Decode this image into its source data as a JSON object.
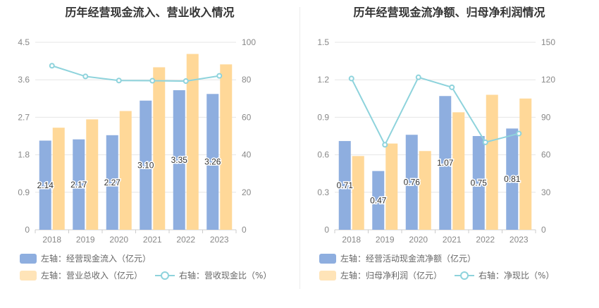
{
  "charts": {
    "left": {
      "title": "历年经营现金流入、营业收入情况",
      "legend": {
        "bar1": "左轴：经营现金流入（亿元）",
        "bar2": "左轴：营业总收入（亿元）",
        "line": "右轴：营收现金比（%）"
      }
    },
    "right": {
      "title": "历年经营现金流净额、归母净利润情况",
      "legend": {
        "bar1": "左轴：经营活动现金流净额（亿元）",
        "bar2": "左轴：归母净利润（亿元）",
        "line": "右轴：净现比（%）"
      }
    }
  },
  "colors": {
    "bar1": "#8eaedf",
    "bar2": "#ffd898",
    "line": "#8ed3dc"
  },
  "chart_data": [
    {
      "type": "bar",
      "title": "历年经营现金流入、营业收入情况",
      "categories": [
        "2018",
        "2019",
        "2020",
        "2021",
        "2022",
        "2023"
      ],
      "y_left": {
        "ylim": [
          0,
          4.5
        ],
        "ticks": [
          "0",
          "0.9",
          "1.8",
          "2.7",
          "3.6",
          "4.5"
        ]
      },
      "y_right": {
        "ylim": [
          0,
          100
        ],
        "ticks": [
          "0",
          "20",
          "40",
          "60",
          "80",
          "100"
        ]
      },
      "series": [
        {
          "name": "左轴：经营现金流入（亿元）",
          "type": "bar",
          "axis": "left",
          "values": [
            2.14,
            2.17,
            2.27,
            3.1,
            3.35,
            3.26
          ],
          "labels": [
            "2.14",
            "2.17",
            "2.27",
            "3.10",
            "3.35",
            "3.26"
          ]
        },
        {
          "name": "左轴：营业总收入（亿元）",
          "type": "bar",
          "axis": "left",
          "values": [
            2.45,
            2.65,
            2.85,
            3.9,
            4.22,
            3.97
          ]
        },
        {
          "name": "右轴：营收现金比（%）",
          "type": "line",
          "axis": "right",
          "values": [
            87.5,
            81.8,
            79.6,
            79.5,
            79.3,
            82.1
          ]
        }
      ]
    },
    {
      "type": "bar",
      "title": "历年经营现金流净额、归母净利润情况",
      "categories": [
        "2018",
        "2019",
        "2020",
        "2021",
        "2022",
        "2023"
      ],
      "y_left": {
        "ylim": [
          0,
          1.5
        ],
        "ticks": [
          "0",
          "0.3",
          "0.6",
          "0.9",
          "1.2",
          "1.5"
        ]
      },
      "y_right": {
        "ylim": [
          0,
          150
        ],
        "ticks": [
          "0",
          "30",
          "60",
          "90",
          "120",
          "150"
        ]
      },
      "series": [
        {
          "name": "左轴：经营活动现金流净额（亿元）",
          "type": "bar",
          "axis": "left",
          "values": [
            0.71,
            0.47,
            0.76,
            1.07,
            0.75,
            0.81
          ],
          "labels": [
            "0.71",
            "0.47",
            "0.76",
            "1.07",
            "0.75",
            "0.81"
          ]
        },
        {
          "name": "左轴：归母净利润（亿元）",
          "type": "bar",
          "axis": "left",
          "values": [
            0.59,
            0.69,
            0.63,
            0.94,
            1.08,
            1.05
          ]
        },
        {
          "name": "右轴：净现比（%）",
          "type": "line",
          "axis": "right",
          "values": [
            121,
            68,
            122,
            114,
            70,
            77
          ]
        }
      ]
    }
  ]
}
